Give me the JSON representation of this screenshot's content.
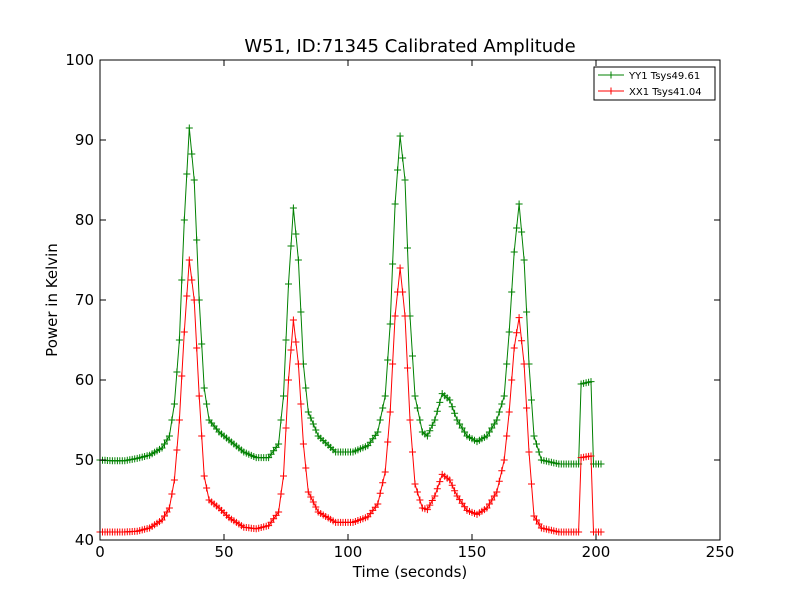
{
  "chart_data": {
    "type": "line",
    "title": "W51, ID:71345 Calibrated Amplitude",
    "xlabel": "Time (seconds)",
    "ylabel": "Power in Kelvin",
    "xlim": [
      0,
      250
    ],
    "ylim": [
      40,
      100
    ],
    "xticks": [
      "0",
      "50",
      "100",
      "150",
      "200",
      "250"
    ],
    "yticks": [
      "40",
      "50",
      "60",
      "70",
      "80",
      "90",
      "100"
    ],
    "grid": false,
    "legend_position": "top-right",
    "marker": "+",
    "series": [
      {
        "name": "YY1 Tsys49.61",
        "color": "#008000",
        "points": [
          [
            0,
            50.0
          ],
          [
            5,
            49.9
          ],
          [
            10,
            49.9
          ],
          [
            15,
            50.2
          ],
          [
            20,
            50.6
          ],
          [
            25,
            51.5
          ],
          [
            28,
            53.0
          ],
          [
            30,
            57.0
          ],
          [
            32,
            65.0
          ],
          [
            34,
            80.0
          ],
          [
            36,
            91.5
          ],
          [
            38,
            85.0
          ],
          [
            40,
            70.0
          ],
          [
            42,
            59.0
          ],
          [
            44,
            55.0
          ],
          [
            48,
            53.5
          ],
          [
            52,
            52.5
          ],
          [
            58,
            51.0
          ],
          [
            63,
            50.3
          ],
          [
            68,
            50.3
          ],
          [
            72,
            52.0
          ],
          [
            74,
            58.0
          ],
          [
            76,
            72.0
          ],
          [
            78,
            81.5
          ],
          [
            80,
            75.0
          ],
          [
            82,
            62.0
          ],
          [
            84,
            56.0
          ],
          [
            88,
            53.0
          ],
          [
            95,
            51.0
          ],
          [
            102,
            51.0
          ],
          [
            108,
            51.8
          ],
          [
            112,
            53.5
          ],
          [
            115,
            58.0
          ],
          [
            117,
            67.0
          ],
          [
            119,
            82.0
          ],
          [
            121,
            90.5
          ],
          [
            123,
            85.0
          ],
          [
            125,
            68.0
          ],
          [
            127,
            58.0
          ],
          [
            130,
            53.5
          ],
          [
            132,
            53.0
          ],
          [
            135,
            55.0
          ],
          [
            138,
            58.3
          ],
          [
            141,
            57.5
          ],
          [
            144,
            55.0
          ],
          [
            148,
            53.0
          ],
          [
            152,
            52.3
          ],
          [
            156,
            53.0
          ],
          [
            160,
            55.0
          ],
          [
            163,
            58.0
          ],
          [
            165,
            66.0
          ],
          [
            167,
            76.0
          ],
          [
            169,
            82.0
          ],
          [
            171,
            75.0
          ],
          [
            173,
            62.0
          ],
          [
            175,
            53.0
          ],
          [
            178,
            50.0
          ],
          [
            185,
            49.5
          ],
          [
            193,
            49.5
          ],
          [
            194,
            59.5
          ],
          [
            198,
            59.8
          ],
          [
            199,
            49.5
          ],
          [
            202,
            49.5
          ]
        ]
      },
      {
        "name": "XX1 Tsys41.04",
        "color": "#ff0000",
        "points": [
          [
            0,
            41.0
          ],
          [
            5,
            41.0
          ],
          [
            10,
            41.0
          ],
          [
            15,
            41.1
          ],
          [
            20,
            41.5
          ],
          [
            25,
            42.5
          ],
          [
            28,
            44.0
          ],
          [
            30,
            47.5
          ],
          [
            32,
            55.0
          ],
          [
            34,
            66.0
          ],
          [
            36,
            75.0
          ],
          [
            38,
            70.0
          ],
          [
            40,
            58.0
          ],
          [
            42,
            48.0
          ],
          [
            44,
            45.0
          ],
          [
            48,
            44.0
          ],
          [
            52,
            42.8
          ],
          [
            58,
            41.6
          ],
          [
            63,
            41.4
          ],
          [
            68,
            41.8
          ],
          [
            72,
            43.5
          ],
          [
            74,
            48.0
          ],
          [
            76,
            60.0
          ],
          [
            78,
            67.5
          ],
          [
            80,
            62.0
          ],
          [
            82,
            52.0
          ],
          [
            84,
            46.0
          ],
          [
            88,
            43.5
          ],
          [
            95,
            42.2
          ],
          [
            102,
            42.2
          ],
          [
            108,
            42.9
          ],
          [
            112,
            44.5
          ],
          [
            115,
            48.5
          ],
          [
            117,
            56.0
          ],
          [
            119,
            68.0
          ],
          [
            121,
            74.0
          ],
          [
            123,
            68.0
          ],
          [
            125,
            55.0
          ],
          [
            127,
            47.0
          ],
          [
            130,
            44.0
          ],
          [
            132,
            43.8
          ],
          [
            135,
            45.5
          ],
          [
            138,
            48.2
          ],
          [
            141,
            47.5
          ],
          [
            144,
            45.5
          ],
          [
            148,
            43.7
          ],
          [
            152,
            43.2
          ],
          [
            156,
            44.0
          ],
          [
            160,
            46.0
          ],
          [
            163,
            50.0
          ],
          [
            165,
            56.0
          ],
          [
            167,
            64.0
          ],
          [
            169,
            67.8
          ],
          [
            171,
            62.0
          ],
          [
            173,
            51.0
          ],
          [
            175,
            43.0
          ],
          [
            178,
            41.5
          ],
          [
            185,
            41.0
          ],
          [
            193,
            41.0
          ],
          [
            194,
            50.3
          ],
          [
            198,
            50.5
          ],
          [
            199,
            41.0
          ],
          [
            202,
            41.0
          ]
        ]
      }
    ]
  }
}
